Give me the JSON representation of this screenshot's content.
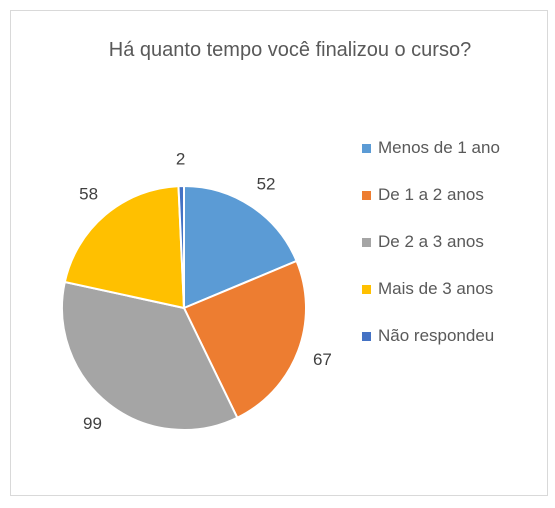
{
  "chart_data": {
    "type": "pie",
    "title": "Há quanto tempo você finalizou o curso?",
    "categories": [
      "Menos de 1 ano",
      "De 1 a 2 anos",
      "De 2 a 3 anos",
      "Mais de 3 anos",
      "Não respondeu"
    ],
    "values": [
      52,
      67,
      99,
      58,
      2
    ],
    "colors": [
      "#5b9bd5",
      "#ed7d31",
      "#a5a5a5",
      "#ffc000",
      "#4472c4"
    ],
    "legend": "right"
  }
}
